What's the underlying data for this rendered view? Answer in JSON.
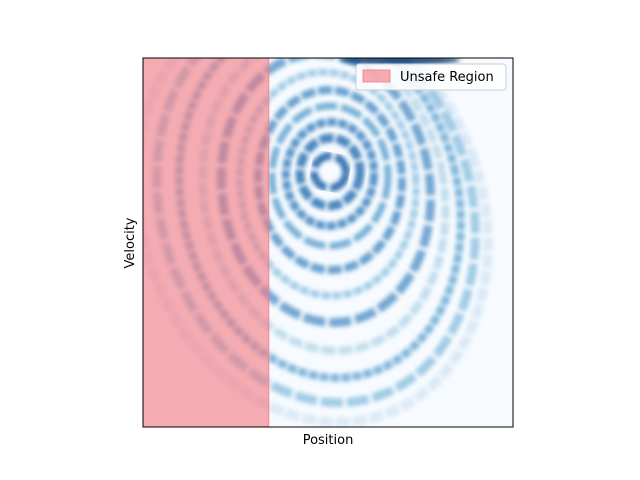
{
  "chart_data": {
    "type": "heatmap",
    "title": "",
    "xlabel": "Position",
    "ylabel": "Velocity",
    "x_ticks_visible": false,
    "y_ticks_visible": false,
    "grid": false,
    "colormap": "Blues",
    "structure": "spiral density with concentric rings converging to a center point in the upper-middle of the plot",
    "unsafe_region": {
      "label": "Unsafe Region",
      "color": "#f4777f",
      "opacity": 0.6,
      "x_fraction_start": 0.0,
      "x_fraction_end": 0.34,
      "spans_full_height": true
    },
    "legend": {
      "placement": "top-right",
      "entries": [
        {
          "label": "Unsafe Region",
          "color": "#f4777f"
        }
      ]
    }
  }
}
